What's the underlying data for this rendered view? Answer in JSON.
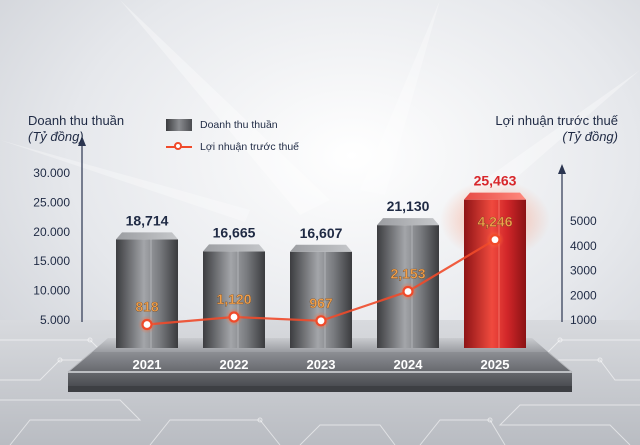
{
  "chart_data": {
    "type": "bar+line",
    "categories": [
      "2021",
      "2022",
      "2023",
      "2024",
      "2025"
    ],
    "series": [
      {
        "name": "Doanh thu thuần",
        "kind": "bar",
        "axis": "left",
        "values": [
          18714,
          16665,
          16607,
          21130,
          25463
        ],
        "labels": [
          "18,714",
          "16,665",
          "16,607",
          "21,130",
          "25,463"
        ]
      },
      {
        "name": "Lợi nhuận trước thuế",
        "kind": "line",
        "axis": "right",
        "values": [
          818,
          1120,
          967,
          2153,
          4246
        ],
        "labels": [
          "818",
          "1,120",
          "967",
          "2,153",
          "4,246"
        ]
      }
    ],
    "left_axis": {
      "title": "Doanh thu thuần",
      "unit": "(Tỷ đồng)",
      "ticks": [
        5000,
        10000,
        15000,
        20000,
        25000,
        30000
      ],
      "tick_labels": [
        "5.000",
        "10.000",
        "15.000",
        "20.000",
        "25.000",
        "30.000"
      ],
      "range": [
        0,
        30000
      ]
    },
    "right_axis": {
      "title": "Lợi nhuận trước thuế",
      "unit": "(Tỷ đồng)",
      "ticks": [
        1000,
        2000,
        3000,
        4000,
        5000
      ],
      "tick_labels": [
        "1000",
        "2000",
        "3000",
        "4000",
        "5000"
      ],
      "range": [
        0,
        6000
      ]
    },
    "highlight_category": "2025",
    "colors": {
      "bar": "#6e7074",
      "bar_highlight": "#d8262a",
      "line": "#f04a2a",
      "line_label": "#f2a04a",
      "axis_text": "#1f2a44",
      "year_text": "#ffffff"
    }
  }
}
